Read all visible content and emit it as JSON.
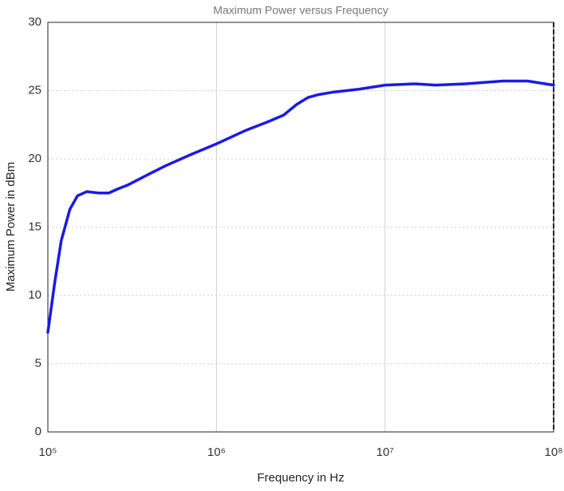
{
  "chart_data": {
    "type": "line",
    "title": "Maximum Power versus Frequency",
    "x_label": "Frequency in Hz",
    "y_label": "Maximum Power in dBm",
    "x_scale": "log",
    "grid": true,
    "xlim": [
      100000,
      100000000
    ],
    "xticks": [
      {
        "value": 100000,
        "label": "10⁵"
      },
      {
        "value": 1000000,
        "label": "10⁶"
      },
      {
        "value": 10000000,
        "label": "10⁷"
      },
      {
        "value": 100000000,
        "label": "10⁸"
      }
    ],
    "ylim": [
      0,
      30
    ],
    "yticks": [
      0,
      5,
      10,
      15,
      20,
      25,
      30
    ],
    "x": [
      100000,
      110000,
      120000,
      135000,
      150000,
      170000,
      200000,
      230000,
      260000,
      300000,
      400000,
      500000,
      700000,
      1000000,
      1500000,
      2000000,
      2500000,
      3000000,
      3500000,
      4000000,
      5000000,
      7000000,
      10000000,
      15000000,
      20000000,
      30000000,
      50000000,
      70000000,
      100000000
    ],
    "series": [
      {
        "color": "#1a1ae6",
        "values": [
          7.3,
          11,
          14,
          16.3,
          17.3,
          17.6,
          17.5,
          17.5,
          17.8,
          18.1,
          18.9,
          19.5,
          20.3,
          21.1,
          22.1,
          22.7,
          23.2,
          24,
          24.5,
          24.7,
          24.9,
          25.1,
          25.4,
          25.5,
          25.4,
          25.5,
          25.7,
          25.7,
          25.4
        ]
      }
    ]
  }
}
